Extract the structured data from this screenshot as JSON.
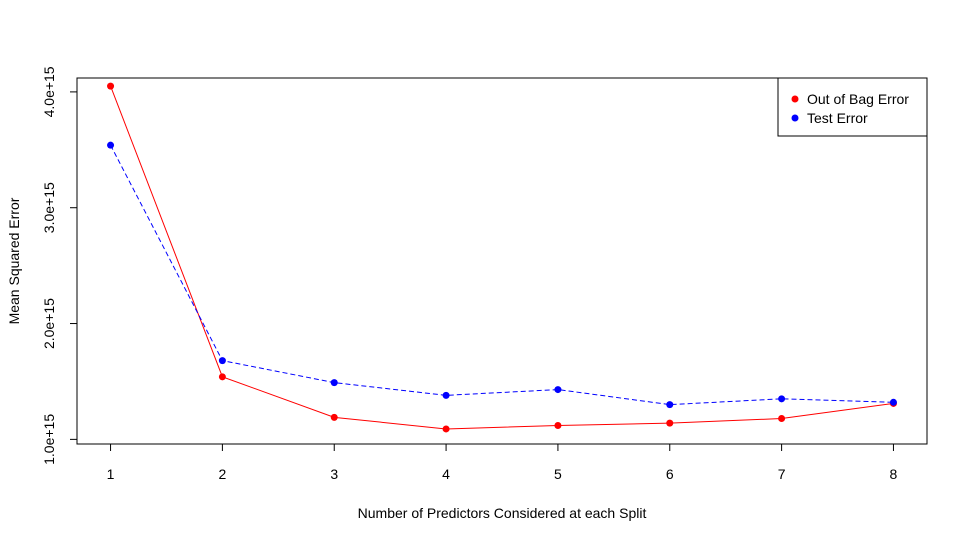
{
  "chart_data": {
    "type": "line",
    "title": "",
    "xlabel": "Number of Predictors Considered at each Split",
    "ylabel": "Mean Squared Error",
    "x": [
      1,
      2,
      3,
      4,
      5,
      6,
      7,
      8
    ],
    "xticks": [
      "1",
      "2",
      "3",
      "4",
      "5",
      "6",
      "7",
      "8"
    ],
    "yticks": [
      {
        "value": 1000000000000000.0,
        "label": "1.0e+15"
      },
      {
        "value": 2000000000000000.0,
        "label": "2.0e+15"
      },
      {
        "value": 3000000000000000.0,
        "label": "3.0e+15"
      },
      {
        "value": 4000000000000000.0,
        "label": "4.0e+15"
      }
    ],
    "xlim": [
      0.7,
      8.3
    ],
    "ylim": [
      960000000000000.0,
      4120000000000000.0
    ],
    "grid": false,
    "legend_position": "top-right",
    "series": [
      {
        "name": "Out of Bag Error",
        "color": "#ff0000",
        "line_style": "solid",
        "values": [
          4050000000000000.0,
          1540000000000000.0,
          1190000000000000.0,
          1090000000000000.0,
          1120000000000000.0,
          1140000000000000.0,
          1180000000000000.0,
          1310000000000000.0
        ]
      },
      {
        "name": "Test Error",
        "color": "#0000ff",
        "line_style": "dashed",
        "values": [
          3540000000000000.0,
          1680000000000000.0,
          1490000000000000.0,
          1380000000000000.0,
          1430000000000000.0,
          1300000000000000.0,
          1350000000000000.0,
          1320000000000000.0
        ]
      }
    ]
  }
}
